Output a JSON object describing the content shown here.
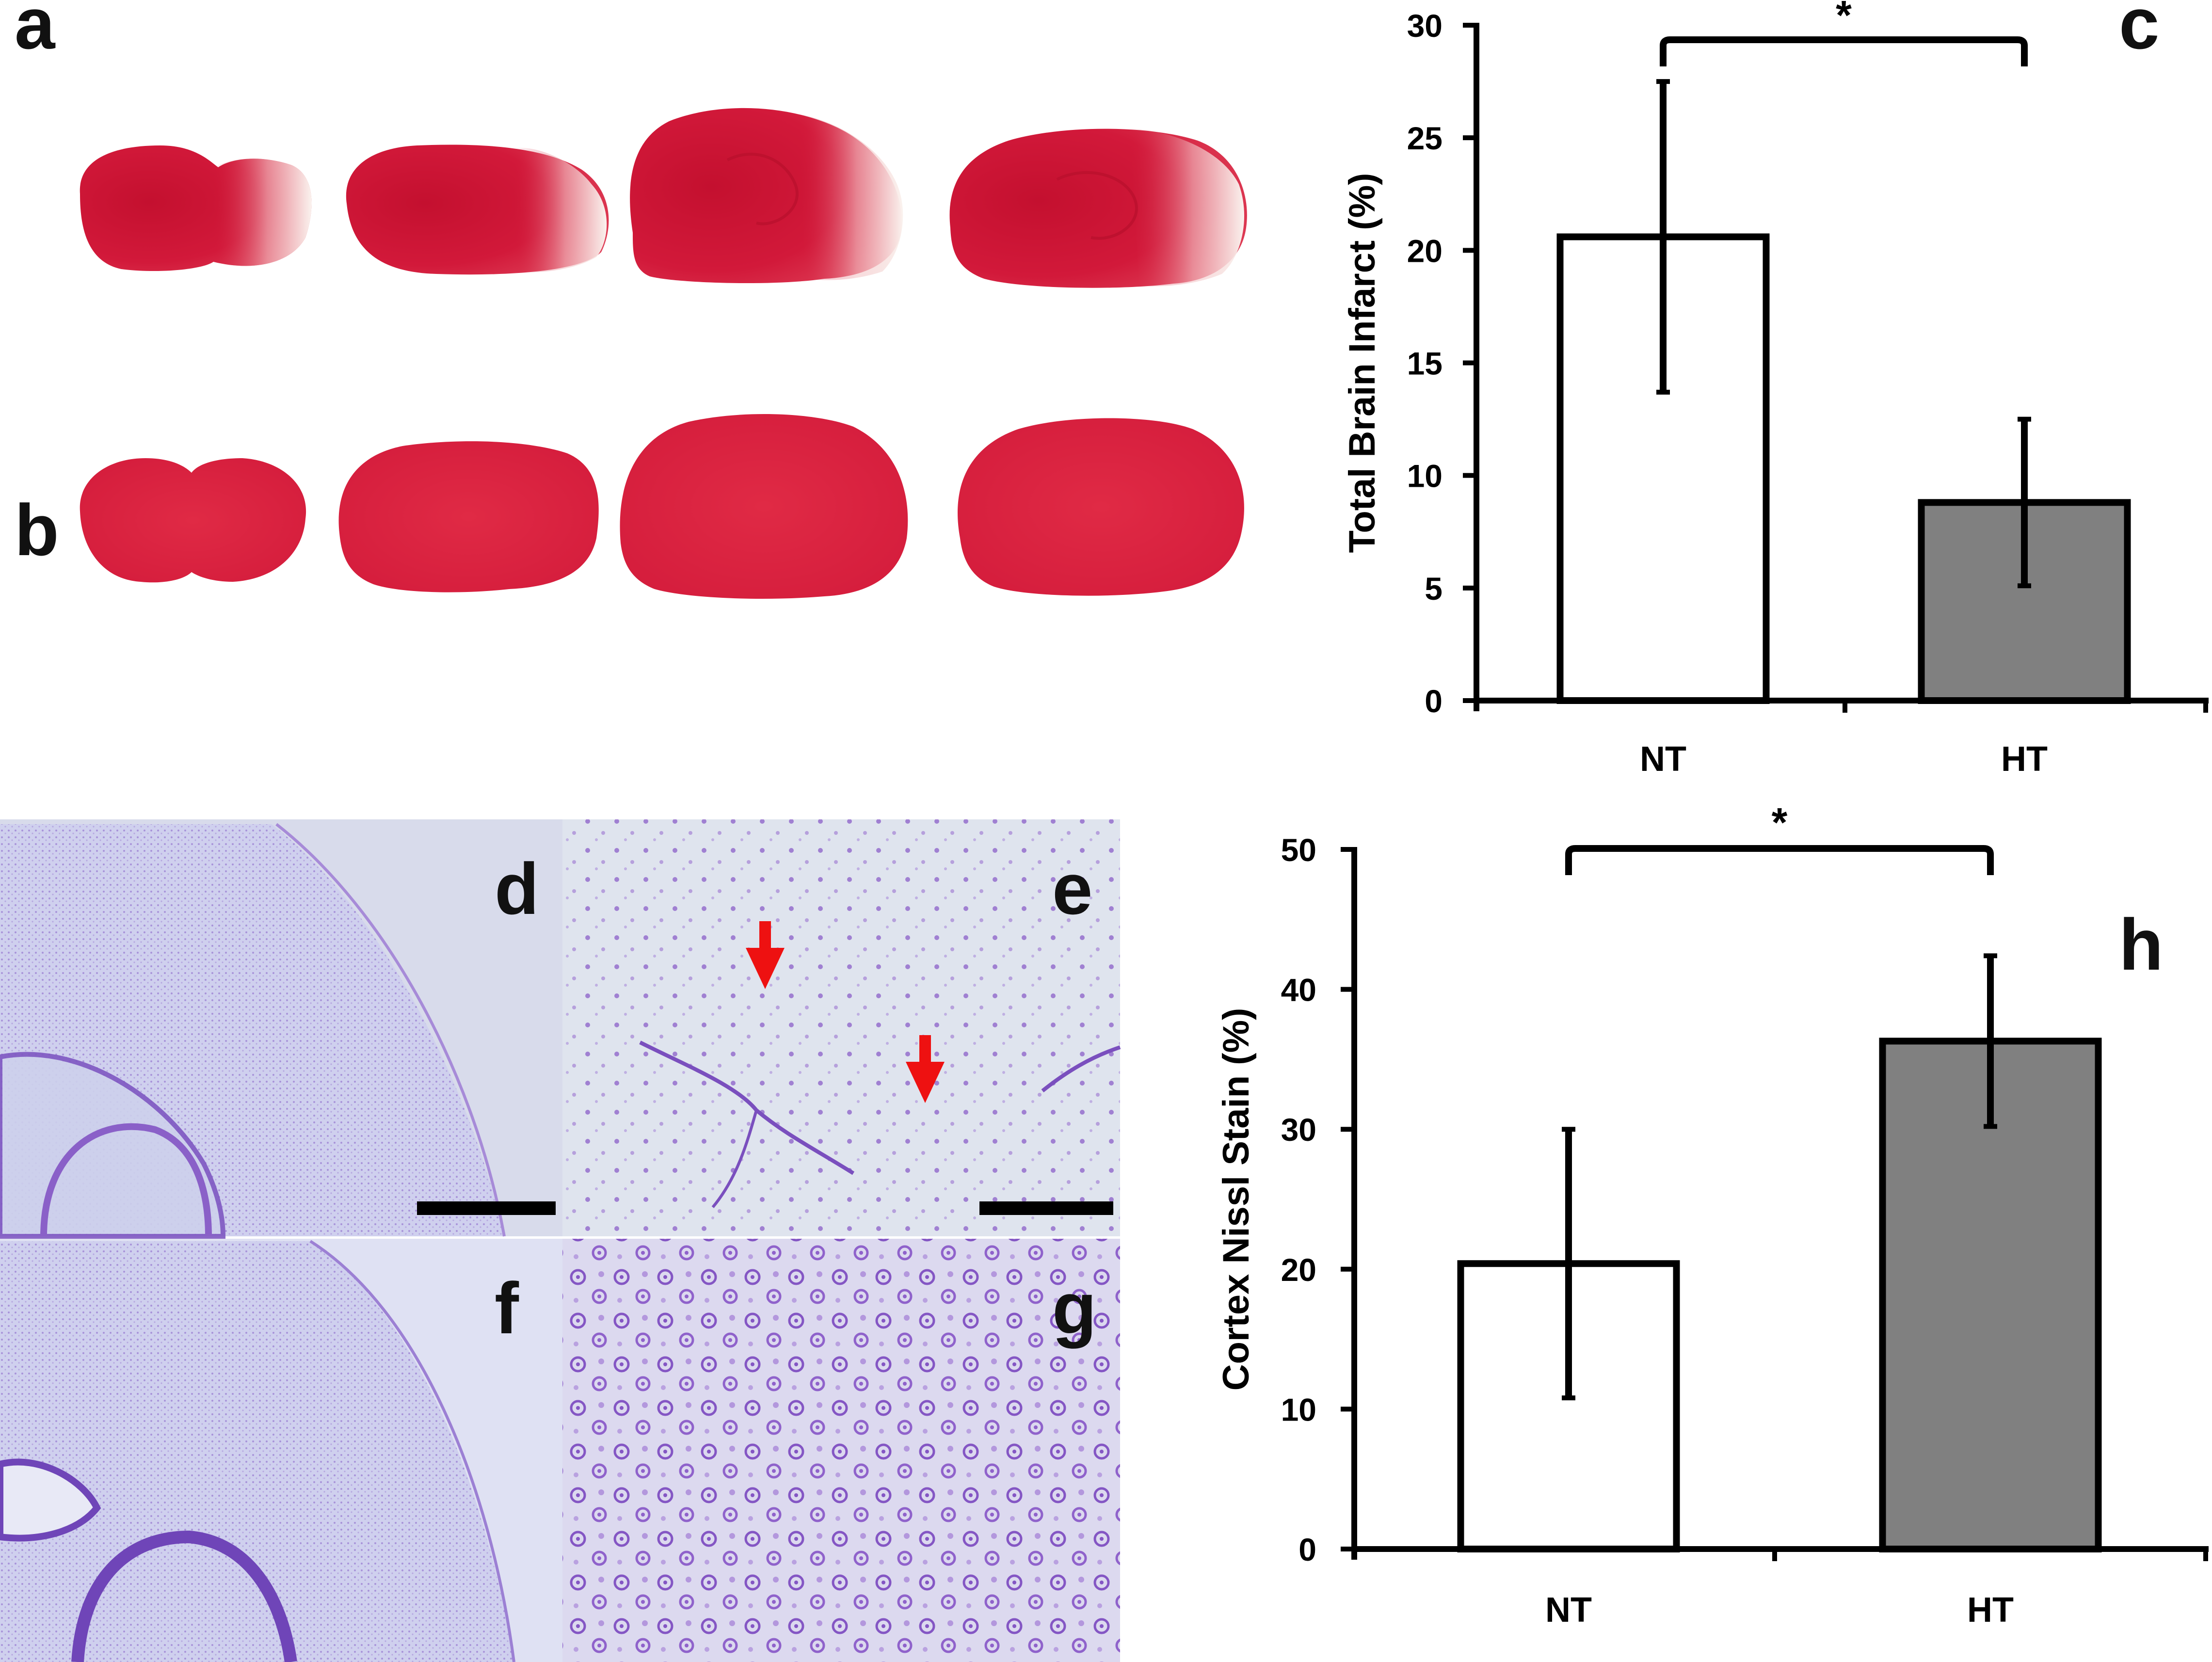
{
  "panel_labels": {
    "a": "a",
    "b": "b",
    "c": "c",
    "d": "d",
    "e": "e",
    "f": "f",
    "g": "g",
    "h": "h"
  },
  "colors": {
    "nt_bar": "#ffffff",
    "ht_bar": "#808080",
    "tissue_red": "#d11a3a",
    "tissue_pale": "#f4ece8",
    "nissl_bg": "#d9dcf0",
    "nissl_stain": "#8a5fc8",
    "arrow": "#ee1111"
  },
  "chart_data": [
    {
      "panel": "c",
      "type": "bar",
      "categories": [
        "NT",
        "HT"
      ],
      "values": [
        20.6,
        8.8
      ],
      "errors": [
        6.9,
        3.7
      ],
      "ylabel": "Total Brain Infarct (%)",
      "ylim": [
        0,
        30
      ],
      "yticks": [
        0,
        5,
        10,
        15,
        20,
        25,
        30
      ],
      "significance": "*",
      "bar_colors": [
        "#ffffff",
        "#808080"
      ]
    },
    {
      "panel": "h",
      "type": "bar",
      "categories": [
        "NT",
        "HT"
      ],
      "values": [
        20.4,
        36.3
      ],
      "errors": [
        9.6,
        6.1
      ],
      "ylabel": "Cortex Nissl Stain (%)",
      "ylim": [
        0,
        50
      ],
      "yticks": [
        0,
        10,
        20,
        30,
        40,
        50
      ],
      "significance": "*",
      "bar_colors": [
        "#ffffff",
        "#808080"
      ]
    }
  ]
}
